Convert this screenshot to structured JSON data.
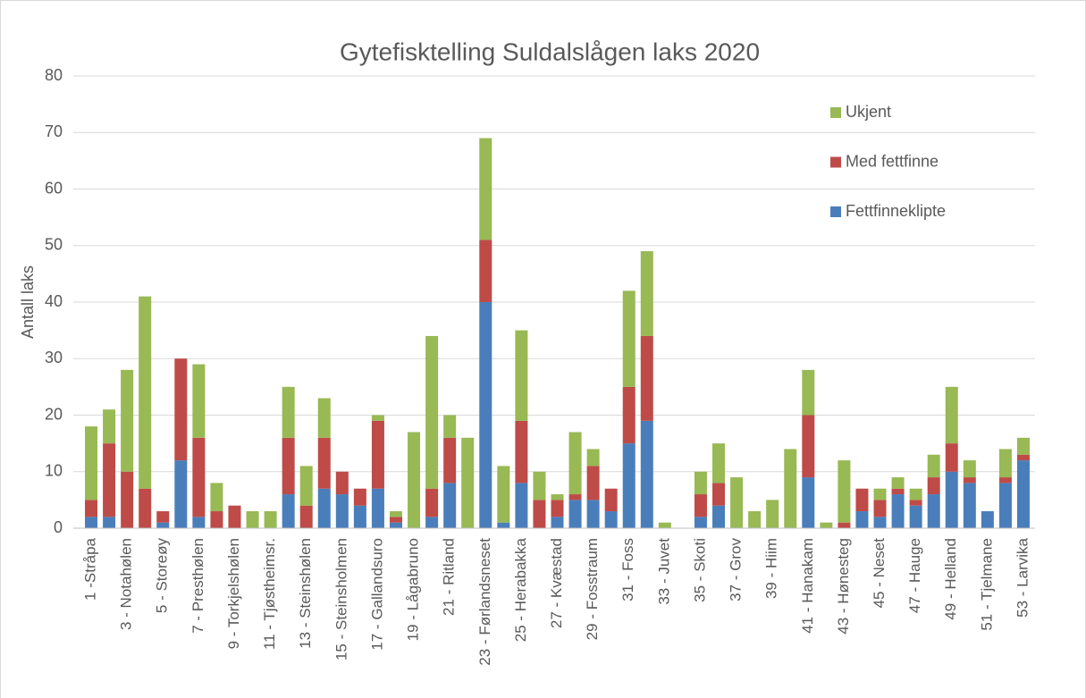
{
  "chart_data": {
    "type": "stacked_bar",
    "title": "Gytefisktelling Suldalslågen laks 2020",
    "ylabel": "Antall laks",
    "categories": [
      "1 -Stråpa",
      null,
      "3 - Notahølen",
      null,
      "5 - Storeøy",
      null,
      "7 - Presthølen",
      null,
      "9 - Torkjelshølen",
      null,
      "11 - Tjøstheimsr.",
      null,
      "13 - Steinshølen",
      null,
      "15 - Steinsholmen",
      null,
      "17 - Gallandsuro",
      null,
      "19 - Lågabruno",
      null,
      "21 - Ritland",
      null,
      "23 - Førlandsneset",
      null,
      "25 - Herabakka",
      null,
      "27 - Kvæstad",
      null,
      "29 - Fosstraum",
      null,
      "31 - Foss",
      null,
      "33 - Juvet",
      null,
      "35 - Skoti",
      null,
      "37 - Grov",
      null,
      "39 - Hiim",
      null,
      "41 - Hanakam",
      null,
      "43 - Hønesteg",
      null,
      "45 - Neset",
      null,
      "47 - Hauge",
      null,
      "49 - Helland",
      null,
      "51 - Tjelmane",
      null,
      "53 - Larvika"
    ],
    "series": [
      {
        "name": "Fettfinneklipte",
        "color": "#4a7ebb",
        "values": [
          2,
          2,
          0,
          0,
          1,
          12,
          2,
          0,
          0,
          0,
          0,
          6,
          0,
          7,
          6,
          4,
          7,
          1,
          0,
          2,
          8,
          0,
          40,
          1,
          8,
          0,
          2,
          5,
          5,
          3,
          15,
          19,
          0,
          0,
          2,
          4,
          0,
          0,
          0,
          0,
          9,
          0,
          0,
          3,
          2,
          6,
          4,
          6,
          10,
          8,
          3,
          8,
          12
        ]
      },
      {
        "name": "Med fettfinne",
        "color": "#be4b48",
        "values": [
          3,
          13,
          10,
          7,
          2,
          18,
          14,
          3,
          4,
          0,
          0,
          10,
          4,
          9,
          4,
          3,
          12,
          1,
          0,
          5,
          8,
          0,
          11,
          0,
          11,
          5,
          3,
          1,
          6,
          4,
          10,
          15,
          0,
          0,
          4,
          4,
          0,
          0,
          0,
          0,
          11,
          0,
          1,
          4,
          3,
          1,
          1,
          3,
          5,
          1,
          0,
          1,
          1
        ]
      },
      {
        "name": "Ukjent",
        "color": "#98b954",
        "values": [
          13,
          6,
          18,
          34,
          0,
          0,
          13,
          5,
          0,
          3,
          3,
          9,
          7,
          7,
          0,
          0,
          1,
          1,
          17,
          27,
          4,
          16,
          18,
          10,
          16,
          5,
          1,
          11,
          3,
          0,
          17,
          15,
          1,
          0,
          4,
          7,
          9,
          3,
          5,
          14,
          8,
          1,
          11,
          0,
          2,
          2,
          2,
          4,
          10,
          3,
          0,
          5,
          3
        ]
      }
    ],
    "ylim": [
      0,
      80
    ],
    "yticks": [
      0,
      10,
      20,
      30,
      40,
      50,
      60,
      70,
      80
    ],
    "grid": true,
    "legend": "upper right"
  }
}
